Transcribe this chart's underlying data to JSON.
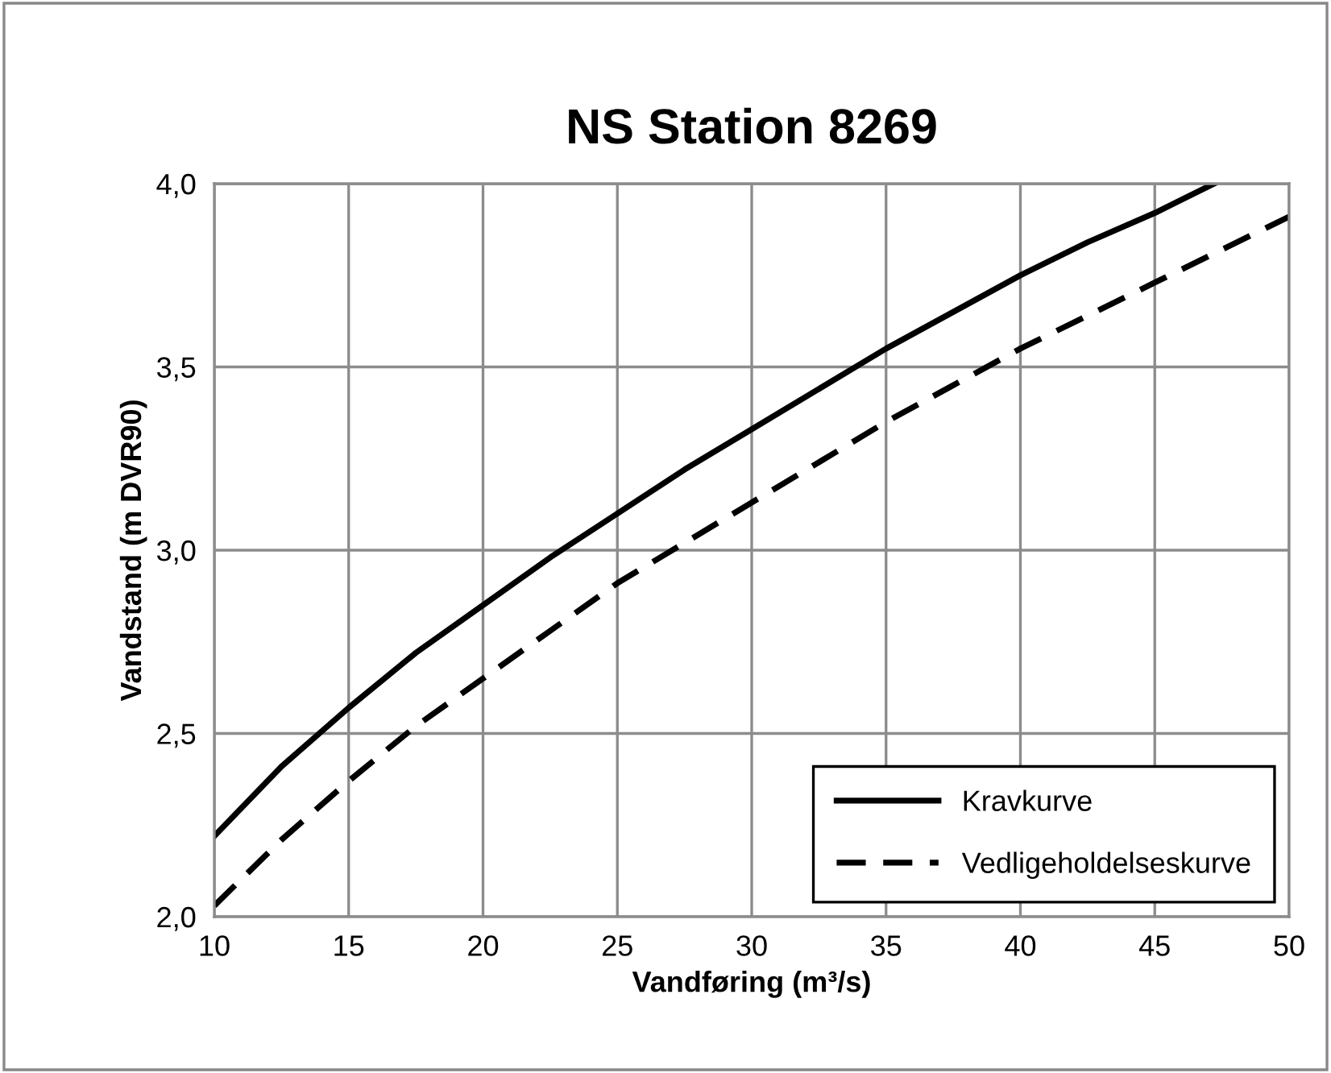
{
  "chart_data": {
    "type": "line",
    "title": "NS Station 8269",
    "xlabel": "Vandføring (m³/s)",
    "ylabel": "Vandstand (m DVR90)",
    "xlim": [
      10,
      50
    ],
    "xticks": [
      10,
      15,
      20,
      25,
      30,
      35,
      40,
      45,
      50
    ],
    "ylim": [
      2.0,
      4.0
    ],
    "yticks": [
      {
        "value": 2.0,
        "label": "2,0"
      },
      {
        "value": 2.5,
        "label": "2,5"
      },
      {
        "value": 3.0,
        "label": "3,0"
      },
      {
        "value": 3.5,
        "label": "3,5"
      },
      {
        "value": 4.0,
        "label": "4,0"
      }
    ],
    "grid": true,
    "legend": "bottom right",
    "marker": "none",
    "series": [
      {
        "name": "Kravkurve",
        "color": "#000000",
        "line_style": "solid",
        "x": [
          10,
          12.5,
          15,
          17.5,
          20,
          22.5,
          25,
          27.5,
          30,
          32.5,
          35,
          37.5,
          40,
          42.5,
          45,
          47.2
        ],
        "values": [
          2.22,
          2.41,
          2.57,
          2.72,
          2.85,
          2.98,
          3.1,
          3.22,
          3.33,
          3.44,
          3.55,
          3.65,
          3.75,
          3.84,
          3.92,
          4.0
        ]
      },
      {
        "name": "Vedligeholdelseskurve",
        "color": "#000000",
        "line_style": "dashed",
        "x": [
          10,
          12.5,
          15,
          17.5,
          20,
          22.5,
          25,
          27.5,
          30,
          32.5,
          35,
          37.5,
          40,
          42.5,
          45,
          47.5,
          50
        ],
        "values": [
          2.03,
          2.21,
          2.37,
          2.52,
          2.65,
          2.78,
          2.91,
          3.02,
          3.13,
          3.24,
          3.35,
          3.45,
          3.55,
          3.64,
          3.73,
          3.82,
          3.91
        ]
      }
    ]
  }
}
